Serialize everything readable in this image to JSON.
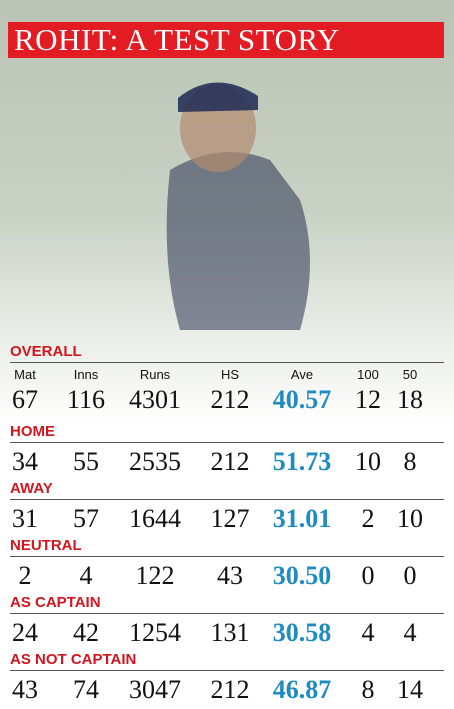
{
  "header": {
    "title": "ROHIT: A TEST STORY"
  },
  "table": {
    "columns": [
      "Mat",
      "Inns",
      "Runs",
      "HS",
      "Ave",
      "100",
      "50"
    ],
    "sections": [
      {
        "label": "OVERALL",
        "values": [
          "67",
          "116",
          "4301",
          "212",
          "40.57",
          "12",
          "18"
        ]
      },
      {
        "label": "HOME",
        "values": [
          "34",
          "55",
          "2535",
          "212",
          "51.73",
          "10",
          "8"
        ]
      },
      {
        "label": "AWAY",
        "values": [
          "31",
          "57",
          "1644",
          "127",
          "31.01",
          "2",
          "10"
        ]
      },
      {
        "label": "NEUTRAL",
        "values": [
          "2",
          "4",
          "122",
          "43",
          "30.50",
          "0",
          "0"
        ]
      },
      {
        "label": "AS CAPTAIN",
        "values": [
          "24",
          "42",
          "1254",
          "131",
          "30.58",
          "4",
          "4"
        ]
      },
      {
        "label": "AS NOT CAPTAIN",
        "values": [
          "43",
          "74",
          "3047",
          "212",
          "46.87",
          "8",
          "14"
        ]
      }
    ]
  }
}
